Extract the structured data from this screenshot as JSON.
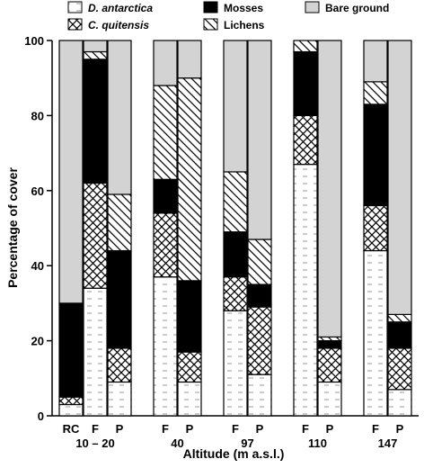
{
  "chart_data": {
    "type": "bar",
    "stacked": true,
    "xlabel": "Altitude (m a.s.l.)",
    "ylabel": "Percentage of cover",
    "ylim": [
      0,
      100
    ],
    "yticks": [
      0,
      20,
      40,
      60,
      80,
      100
    ],
    "grid": false,
    "legend_position": "top",
    "stack_order": [
      "D. antarctica",
      "C. quitensis",
      "Mosses",
      "Lichens",
      "Bare ground"
    ],
    "series": [
      {
        "name": "D. antarctica",
        "italic": true,
        "pattern": "horizontal-dashes",
        "color": "#ffffff"
      },
      {
        "name": "C. quitensis",
        "italic": true,
        "pattern": "crosshatch",
        "color": "#ffffff"
      },
      {
        "name": "Mosses",
        "italic": false,
        "pattern": "solid",
        "color": "#000000"
      },
      {
        "name": "Lichens",
        "italic": false,
        "pattern": "diagonal-hatch",
        "color": "#ffffff"
      },
      {
        "name": "Bare ground",
        "italic": false,
        "pattern": "solid",
        "color": "#d3d3d3"
      }
    ],
    "groups": [
      {
        "label": "10 – 20",
        "bars": [
          {
            "label": "RC",
            "values": [
              3,
              2,
              25,
              0,
              70
            ]
          },
          {
            "label": "F",
            "values": [
              34,
              28,
              33,
              2,
              3
            ]
          },
          {
            "label": "P",
            "values": [
              9,
              9,
              26,
              15,
              41
            ]
          }
        ]
      },
      {
        "label": "40",
        "bars": [
          {
            "label": "F",
            "values": [
              37,
              17,
              9,
              25,
              12
            ]
          },
          {
            "label": "P",
            "values": [
              9,
              8,
              19,
              54,
              10
            ]
          }
        ]
      },
      {
        "label": "97",
        "bars": [
          {
            "label": "F",
            "values": [
              28,
              9,
              12,
              16,
              35
            ]
          },
          {
            "label": "P",
            "values": [
              11,
              18,
              6,
              12,
              53
            ]
          }
        ]
      },
      {
        "label": "110",
        "bars": [
          {
            "label": "F",
            "values": [
              67,
              13,
              17,
              3,
              0
            ]
          },
          {
            "label": "P",
            "values": [
              9,
              9,
              2,
              1,
              79
            ]
          }
        ]
      },
      {
        "label": "147",
        "bars": [
          {
            "label": "F",
            "values": [
              44,
              12,
              27,
              6,
              11
            ]
          },
          {
            "label": "P",
            "values": [
              7,
              11,
              7,
              2,
              73
            ]
          }
        ]
      }
    ]
  }
}
